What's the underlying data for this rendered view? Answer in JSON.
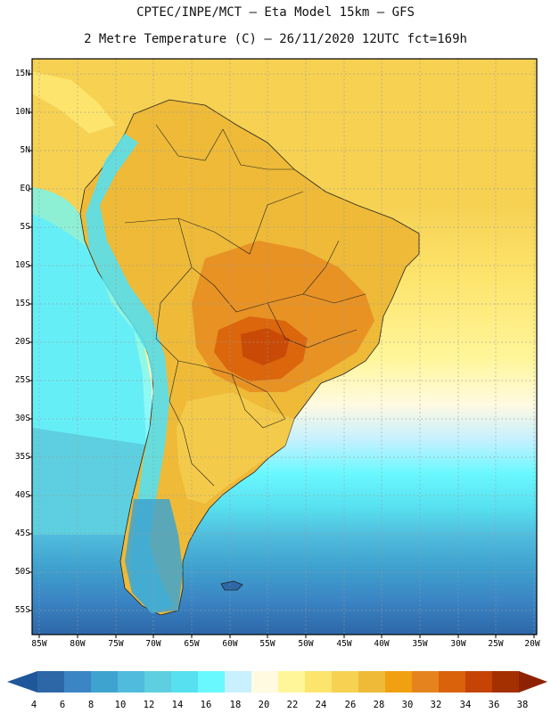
{
  "header": {
    "title_line1": "CPTEC/INPE/MCT –  Eta Model 15km – GFS",
    "title_line2": "2 Metre Temperature (C) – 26/11/2020 12UTC fct=169h"
  },
  "axes": {
    "lat_labels": [
      "15N",
      "10N",
      "5N",
      "EQ",
      "5S",
      "10S",
      "15S",
      "20S",
      "25S",
      "30S",
      "35S",
      "40S",
      "45S",
      "50S",
      "55S"
    ],
    "lon_labels": [
      "85W",
      "80W",
      "75W",
      "70W",
      "65W",
      "60W",
      "55W",
      "50W",
      "45W",
      "40W",
      "35W",
      "30W",
      "25W",
      "20W"
    ]
  },
  "legend": {
    "values": [
      "4",
      "6",
      "8",
      "10",
      "12",
      "14",
      "16",
      "18",
      "20",
      "22",
      "24",
      "26",
      "28",
      "30",
      "32",
      "34",
      "36",
      "38"
    ],
    "colors": [
      "#2d67a8",
      "#3b85c4",
      "#3fa3cf",
      "#50bbdd",
      "#5dcfe0",
      "#57e0ef",
      "#6af8ff",
      "#c8f0ff",
      "#fffae0",
      "#fff69a",
      "#fde46c",
      "#f6d152",
      "#eeba38",
      "#f0a010",
      "#e5841e",
      "#d9620a",
      "#c44305",
      "#a42f00"
    ],
    "low_end_color": "#1f579a",
    "high_end_color": "#8e2200"
  },
  "colors": {
    "ocean_north": "#f6d152",
    "ocean_mid": "#fde46c",
    "land_hot": "#eeba38",
    "hot_core": "#d9620a"
  }
}
